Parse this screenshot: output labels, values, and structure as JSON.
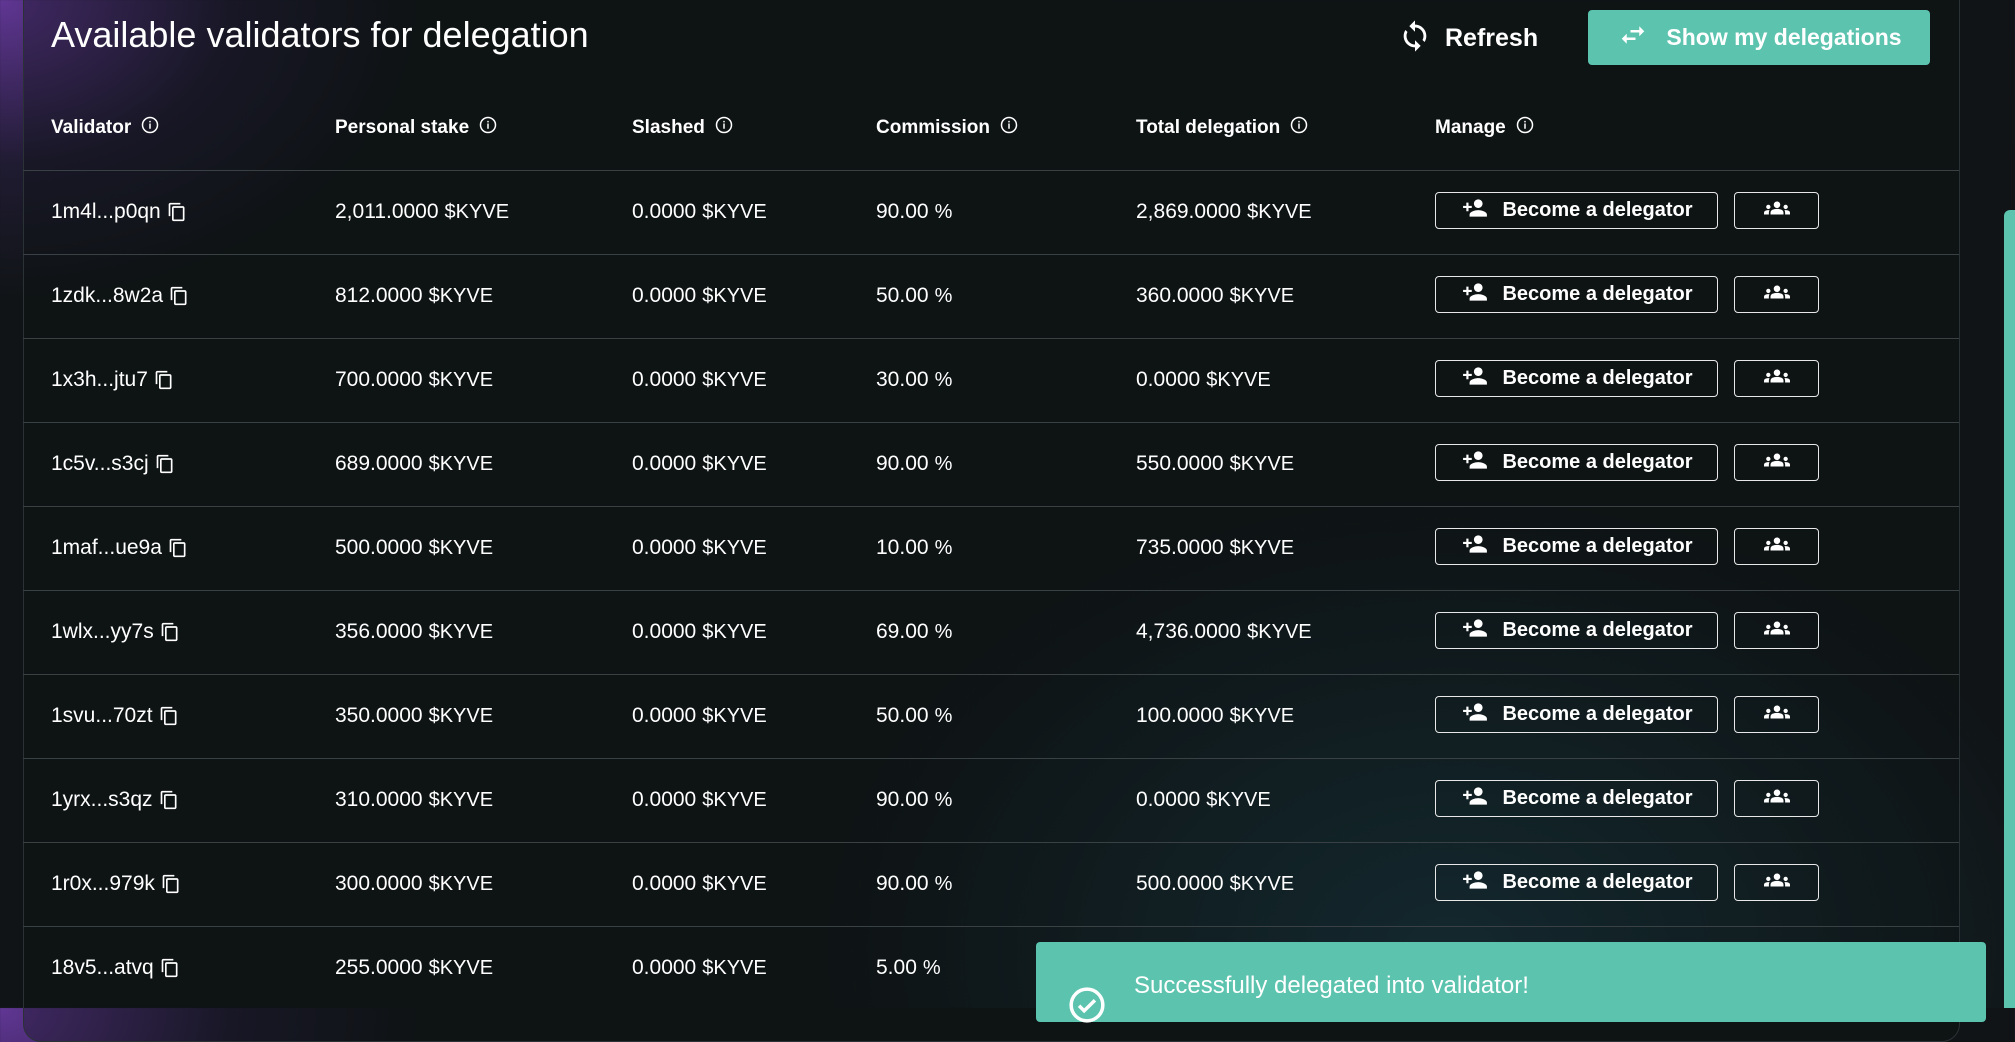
{
  "header": {
    "title": "Available validators for delegation",
    "refresh_label": "Refresh",
    "show_delegations_label": "Show my delegations"
  },
  "columns": [
    "Validator",
    "Personal stake",
    "Slashed",
    "Commission",
    "Total delegation",
    "Manage"
  ],
  "unit": "$KYVE",
  "percent_sign": "%",
  "become_label": "Become a delegator",
  "rows": [
    {
      "validator": "1m4l...p0qn",
      "personal_stake": "2,011.0000",
      "slashed": "0.0000",
      "commission": "90.00",
      "total_delegation": "2,869.0000"
    },
    {
      "validator": "1zdk...8w2a",
      "personal_stake": "812.0000",
      "slashed": "0.0000",
      "commission": "50.00",
      "total_delegation": "360.0000"
    },
    {
      "validator": "1x3h...jtu7",
      "personal_stake": "700.0000",
      "slashed": "0.0000",
      "commission": "30.00",
      "total_delegation": "0.0000"
    },
    {
      "validator": "1c5v...s3cj",
      "personal_stake": "689.0000",
      "slashed": "0.0000",
      "commission": "90.00",
      "total_delegation": "550.0000"
    },
    {
      "validator": "1maf...ue9a",
      "personal_stake": "500.0000",
      "slashed": "0.0000",
      "commission": "10.00",
      "total_delegation": "735.0000"
    },
    {
      "validator": "1wlx...yy7s",
      "personal_stake": "356.0000",
      "slashed": "0.0000",
      "commission": "69.00",
      "total_delegation": "4,736.0000"
    },
    {
      "validator": "1svu...70zt",
      "personal_stake": "350.0000",
      "slashed": "0.0000",
      "commission": "50.00",
      "total_delegation": "100.0000"
    },
    {
      "validator": "1yrx...s3qz",
      "personal_stake": "310.0000",
      "slashed": "0.0000",
      "commission": "90.00",
      "total_delegation": "0.0000"
    },
    {
      "validator": "1r0x...979k",
      "personal_stake": "300.0000",
      "slashed": "0.0000",
      "commission": "90.00",
      "total_delegation": "500.0000"
    },
    {
      "validator": "18v5...atvq",
      "personal_stake": "255.0000",
      "slashed": "0.0000",
      "commission": "5.00",
      "total_delegation": ""
    }
  ],
  "toast": {
    "message": "Successfully delegated into validator!"
  },
  "colors": {
    "accent": "#5cc3ae",
    "background": "#101416"
  }
}
